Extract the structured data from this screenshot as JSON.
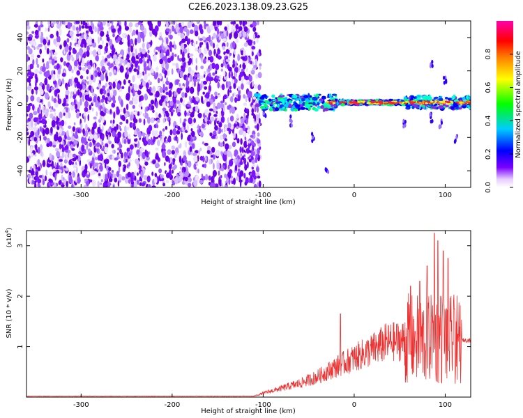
{
  "title": "C2E6.2023.138.09.23.G25",
  "chart_data": [
    {
      "type": "heatmap",
      "xlabel": "Height of straight line (km)",
      "ylabel": "Frequency (Hz)",
      "xlim": [
        -360,
        128
      ],
      "ylim": [
        -50,
        50
      ],
      "xticks": [
        -300,
        -200,
        -100,
        0,
        100
      ],
      "yticks": [
        -40,
        -20,
        0,
        20,
        40
      ],
      "noise_region": {
        "x_range": [
          -360,
          -103
        ],
        "y_range": [
          -50,
          50
        ]
      },
      "signal_band": {
        "x_range": [
          -108,
          128
        ],
        "center_frequency": 1,
        "half_width": 6
      },
      "colorbar": {
        "label": "Normalized spectral amplitude",
        "range": [
          0,
          1
        ],
        "ticks": [
          "0.0",
          "0.2",
          "0.4",
          "0.6",
          "0.8"
        ],
        "colors": [
          "#ffffff",
          "#7b00ff",
          "#0000ff",
          "#00ccff",
          "#00ff00",
          "#ffff00",
          "#ff8000",
          "#ff0000",
          "#ff00aa"
        ]
      }
    },
    {
      "type": "line",
      "xlabel": "Height of straight line (km)",
      "ylabel": "SNR (10 * v/v)",
      "yscale_label": "(x10",
      "yscale_exp": "4",
      "xlim": [
        -360,
        128
      ],
      "ylim": [
        0,
        3.3
      ],
      "xticks": [
        -300,
        -200,
        -100,
        0,
        100
      ],
      "yticks": [
        1,
        2,
        3
      ],
      "series": [
        {
          "color": "#ee3030",
          "envelope": [
            [
              -360,
              0.02
            ],
            [
              -110,
              0.02
            ],
            [
              -100,
              0.08
            ],
            [
              -80,
              0.18
            ],
            [
              -60,
              0.28
            ],
            [
              -40,
              0.42
            ],
            [
              -20,
              0.62
            ],
            [
              0,
              0.8
            ],
            [
              20,
              0.97
            ],
            [
              35,
              1.12
            ],
            [
              58,
              1.17
            ],
            [
              62,
              1.15
            ],
            [
              128,
              1.13
            ]
          ],
          "peaks": [
            [
              -15,
              1.65
            ],
            [
              62,
              2.2
            ],
            [
              67,
              1.3
            ],
            [
              72,
              2.3
            ],
            [
              76,
              1.45
            ],
            [
              80,
              2.6
            ],
            [
              85,
              1.6
            ],
            [
              88,
              3.25
            ],
            [
              92,
              3.1
            ],
            [
              95,
              2.0
            ],
            [
              98,
              2.9
            ],
            [
              103,
              2.75
            ],
            [
              106,
              1.5
            ],
            [
              110,
              1.75
            ],
            [
              114,
              1.25
            ]
          ]
        }
      ]
    }
  ]
}
